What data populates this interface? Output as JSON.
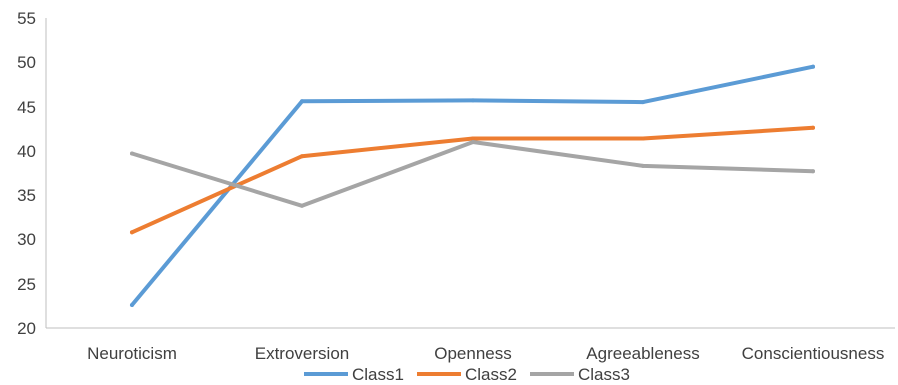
{
  "chart_data": {
    "type": "line",
    "categories": [
      "Neuroticism",
      "Extroversion",
      "Openness",
      "Agreeableness",
      "Conscientiousness"
    ],
    "series": [
      {
        "name": "Class1",
        "color": "#5b9bd5",
        "values": [
          22.6,
          45.6,
          45.7,
          45.5,
          49.5
        ]
      },
      {
        "name": "Class2",
        "color": "#ed7d31",
        "values": [
          30.8,
          39.4,
          41.4,
          41.4,
          42.6
        ]
      },
      {
        "name": "Class3",
        "color": "#a5a5a5",
        "values": [
          39.7,
          33.8,
          41.0,
          38.3,
          37.7
        ]
      }
    ],
    "yticks": [
      "20",
      "25",
      "30",
      "35",
      "40",
      "45",
      "50",
      "55"
    ],
    "ylim": [
      20,
      55
    ],
    "grid": false,
    "legend_position": "bottom"
  }
}
